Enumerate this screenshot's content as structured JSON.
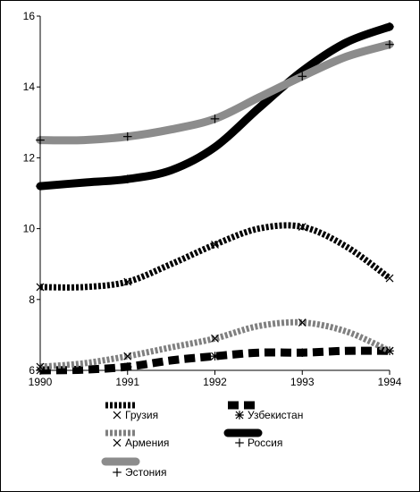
{
  "chart_data": {
    "type": "line",
    "x": [
      1990,
      1991,
      1992,
      1993,
      1994
    ],
    "xlim": [
      1990,
      1994
    ],
    "ylim": [
      6,
      16
    ],
    "xticks": [
      "1990",
      "1991",
      "1992",
      "1993",
      "1994"
    ],
    "yticks": [
      "6",
      "8",
      "10",
      "12",
      "14",
      "16"
    ],
    "grid": false,
    "legend_position": "bottom",
    "series": [
      {
        "key": "georgia",
        "name": "Грузия",
        "color": "#000000",
        "stroke": "dotted-heavy",
        "marker": "x",
        "points": [
          [
            1990,
            8.35
          ],
          [
            1990.5,
            8.35
          ],
          [
            1991,
            8.5
          ],
          [
            1991.5,
            9.0
          ],
          [
            1992,
            9.55
          ],
          [
            1992.5,
            10.0
          ],
          [
            1993,
            10.05
          ],
          [
            1993.5,
            9.5
          ],
          [
            1994,
            8.6
          ]
        ]
      },
      {
        "key": "uzbekistan",
        "name": "Узбекистан",
        "color": "#000000",
        "stroke": "dashed-heavy",
        "marker": "asterisk",
        "points": [
          [
            1990,
            6.0
          ],
          [
            1990.5,
            6.02
          ],
          [
            1991,
            6.1
          ],
          [
            1991.5,
            6.28
          ],
          [
            1992,
            6.4
          ],
          [
            1992.5,
            6.5
          ],
          [
            1993,
            6.5
          ],
          [
            1993.5,
            6.55
          ],
          [
            1994,
            6.55
          ]
        ]
      },
      {
        "key": "armenia",
        "name": "Армения",
        "color": "#808080",
        "stroke": "dotted-heavy",
        "marker": "x",
        "points": [
          [
            1990,
            6.1
          ],
          [
            1990.5,
            6.2
          ],
          [
            1991,
            6.4
          ],
          [
            1991.5,
            6.65
          ],
          [
            1992,
            6.9
          ],
          [
            1992.5,
            7.25
          ],
          [
            1993,
            7.35
          ],
          [
            1993.5,
            7.1
          ],
          [
            1994,
            6.55
          ]
        ]
      },
      {
        "key": "russia",
        "name": "Россия",
        "color": "#000000",
        "stroke": "solid-heavy",
        "marker": "plus",
        "points": [
          [
            1990,
            11.2
          ],
          [
            1990.5,
            11.3
          ],
          [
            1991,
            11.4
          ],
          [
            1991.5,
            11.65
          ],
          [
            1992,
            12.3
          ],
          [
            1992.5,
            13.4
          ],
          [
            1993,
            14.45
          ],
          [
            1993.5,
            15.25
          ],
          [
            1994,
            15.7
          ]
        ]
      },
      {
        "key": "estonia",
        "name": "Эстония",
        "color": "#8c8c8c",
        "stroke": "solid-heavy",
        "marker": "plus",
        "points": [
          [
            1990,
            12.5
          ],
          [
            1990.5,
            12.5
          ],
          [
            1991,
            12.6
          ],
          [
            1991.5,
            12.8
          ],
          [
            1992,
            13.1
          ],
          [
            1992.5,
            13.7
          ],
          [
            1993,
            14.3
          ],
          [
            1993.5,
            14.85
          ],
          [
            1994,
            15.2
          ]
        ]
      }
    ]
  }
}
